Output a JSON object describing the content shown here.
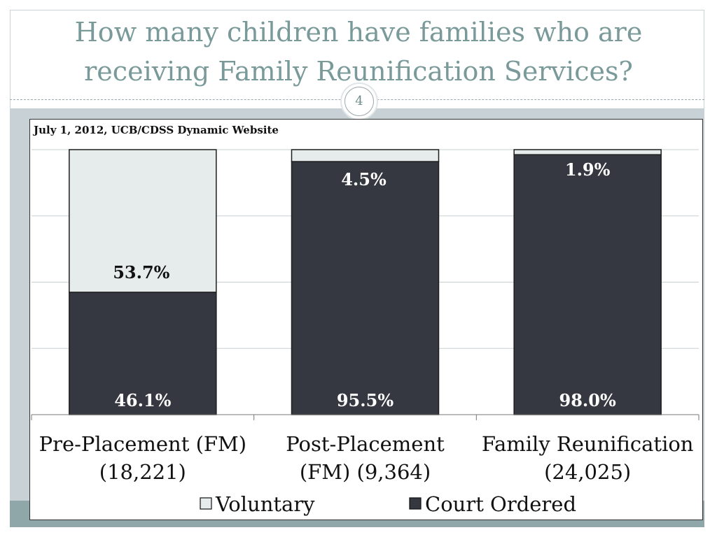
{
  "slide": {
    "title_line1": "How many children have families who are",
    "title_line2": "receiving Family Reunification Services?",
    "page_number": "4"
  },
  "chart_data": {
    "type": "bar",
    "stacked": true,
    "percent_stacked": true,
    "title": "July 1, 2012, UCB/CDSS Dynamic Website",
    "categories": [
      [
        "Pre-Placement (FM)",
        "(18,221)"
      ],
      [
        "Post-Placement",
        "(FM) (9,364)"
      ],
      [
        "Family Reunification",
        "(24,025)"
      ]
    ],
    "series": [
      {
        "name": "Court Ordered",
        "values": [
          46.1,
          95.5,
          98.0
        ],
        "labels": [
          "46.1%",
          "95.5%",
          "98.0%"
        ],
        "color": "#353841"
      },
      {
        "name": "Voluntary",
        "values": [
          53.7,
          4.5,
          1.9
        ],
        "labels": [
          "53.7%",
          "4.5%",
          "1.9%"
        ],
        "color": "#e6ecec"
      }
    ],
    "legend_order": [
      "Voluntary",
      "Court Ordered"
    ],
    "legend_position": "bottom",
    "ylim": [
      0,
      100
    ],
    "grid": true,
    "colors": {
      "gridline": "#c8cfd2",
      "bar_border": "#1e1e1e"
    }
  }
}
